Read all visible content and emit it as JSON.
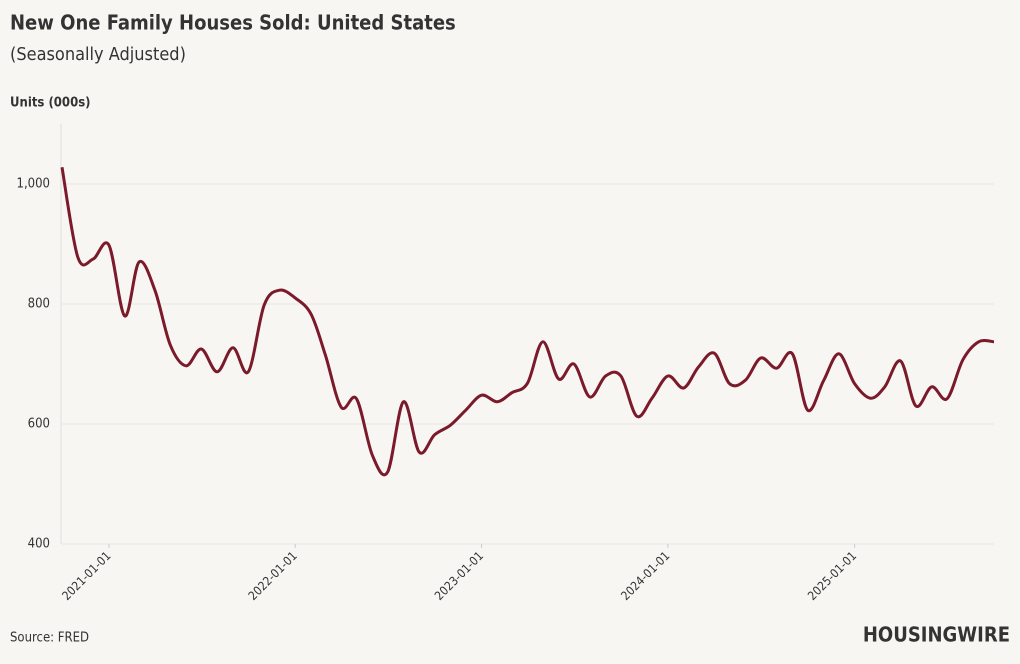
{
  "chart_data": {
    "type": "line",
    "title": "New One Family Houses Sold: United States",
    "subtitle": "(Seasonally Adjusted)",
    "y_label": "Units (000s)",
    "source": "Source: FRED",
    "brand": "HOUSINGWIRE",
    "x": [
      "2020-10-01",
      "2020-11-01",
      "2020-12-01",
      "2021-01-01",
      "2021-02-01",
      "2021-03-01",
      "2021-04-01",
      "2021-05-01",
      "2021-06-01",
      "2021-07-01",
      "2021-08-01",
      "2021-09-01",
      "2021-10-01",
      "2021-11-01",
      "2021-12-01",
      "2022-01-01",
      "2022-02-01",
      "2022-03-01",
      "2022-04-01",
      "2022-05-01",
      "2022-06-01",
      "2022-07-01",
      "2022-08-01",
      "2022-09-01",
      "2022-10-01",
      "2022-11-01",
      "2022-12-01",
      "2023-01-01",
      "2023-02-01",
      "2023-03-01",
      "2023-04-01",
      "2023-05-01",
      "2023-06-01",
      "2023-07-01",
      "2023-08-01",
      "2023-09-01",
      "2023-10-01",
      "2023-11-01",
      "2023-12-01",
      "2024-01-01",
      "2024-02-01",
      "2024-03-01",
      "2024-04-01",
      "2024-05-01",
      "2024-06-01",
      "2024-07-01",
      "2024-08-01",
      "2024-09-01",
      "2024-10-01",
      "2024-11-01",
      "2024-12-01",
      "2025-01-01",
      "2025-02-01",
      "2025-03-01",
      "2025-04-01",
      "2025-05-01",
      "2025-06-01",
      "2025-07-01",
      "2025-08-01",
      "2025-09-01",
      "2025-10-01"
    ],
    "series": [
      {
        "name": "New One Family Houses Sold",
        "color": "#7a1a2a",
        "values": [
          1028,
          878,
          875,
          898,
          780,
          870,
          823,
          732,
          697,
          725,
          687,
          727,
          687,
          798,
          823,
          810,
          783,
          715,
          628,
          642,
          548,
          520,
          637,
          553,
          582,
          598,
          623,
          648,
          637,
          652,
          668,
          737,
          675,
          700,
          645,
          680,
          680,
          613,
          643,
          680,
          660,
          695,
          718,
          667,
          673,
          710,
          693,
          717,
          623,
          672,
          717,
          667,
          643,
          662,
          705,
          630,
          662,
          642,
          707,
          737,
          737
        ]
      }
    ],
    "xlim": [
      "2020-10-01",
      "2025-10-01"
    ],
    "xticks": [
      "2021-01-01",
      "2022-01-01",
      "2023-01-01",
      "2024-01-01",
      "2025-01-01"
    ],
    "ylim": [
      400,
      1100
    ],
    "yticks": [
      400,
      600,
      800,
      {
        "value": 1000,
        "label": "1,000"
      }
    ],
    "grid": true
  }
}
